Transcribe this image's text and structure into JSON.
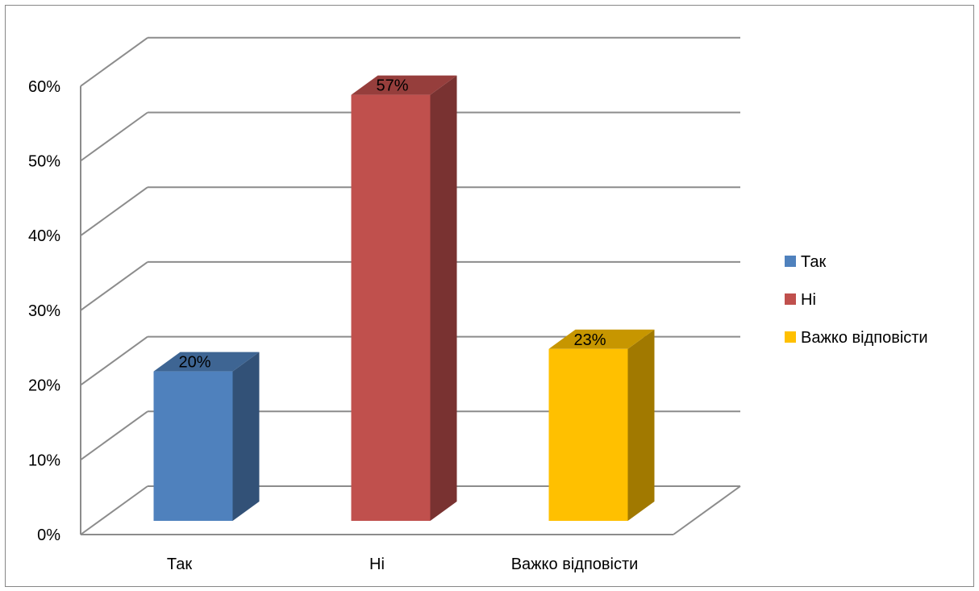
{
  "chart_data": {
    "type": "bar",
    "three_d": true,
    "categories": [
      "Так",
      "Ні",
      "Важко відповісти"
    ],
    "values": [
      20,
      57,
      23
    ],
    "data_labels": [
      "20%",
      "57%",
      "23%"
    ],
    "colors": [
      "#4f81bd",
      "#c0504d",
      "#ffc000"
    ],
    "yticks": [
      "0%",
      "10%",
      "20%",
      "30%",
      "40%",
      "50%",
      "60%"
    ],
    "ylim": [
      0,
      60
    ],
    "grid": true,
    "legend_position": "right",
    "legend": [
      "Так",
      "Ні",
      "Важко відповісти"
    ]
  }
}
